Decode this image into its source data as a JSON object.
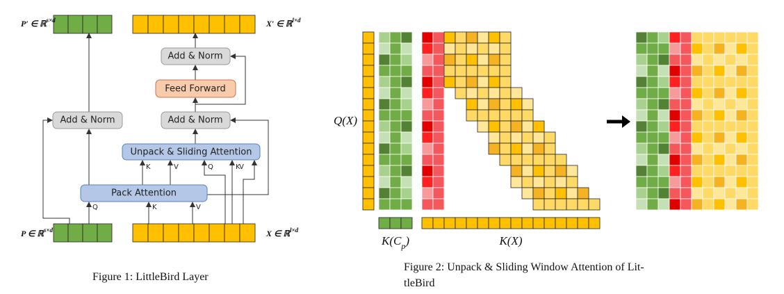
{
  "figure1": {
    "outputs": {
      "p_prime": {
        "symbol": "P′ ∈ ℝ",
        "superscript": "s×d"
      },
      "x_prime": {
        "symbol": "X′ ∈ ℝ",
        "superscript": "l×d"
      }
    },
    "inputs": {
      "p": {
        "symbol": "P ∈ ℝ",
        "superscript": "s×d"
      },
      "x": {
        "symbol": "X ∈ ℝ",
        "superscript": "l×d"
      }
    },
    "blocks": {
      "add_norm_left": "Add & Norm",
      "add_norm_top": "Add & Norm",
      "feed_forward": "Feed Forward",
      "add_norm_mid": "Add & Norm",
      "unpack_attention": "Unpack & Sliding Attention",
      "pack_attention": "Pack Attention"
    },
    "pack_ports": [
      "Q",
      "K",
      "V"
    ],
    "unpack_ports": [
      "K",
      "V",
      "Q",
      "K",
      "V"
    ],
    "caption": "Figure 1:  LittleBird Layer"
  },
  "figure2": {
    "query_label": "Q(X)",
    "key_packed_label": {
      "text": "K(C",
      "subscript": "p",
      "close": ")"
    },
    "key_label": "K(X)",
    "caption_lines": [
      "Figure 2:  Unpack & Sliding Window Attention of Lit-",
      "tleBird"
    ]
  }
}
